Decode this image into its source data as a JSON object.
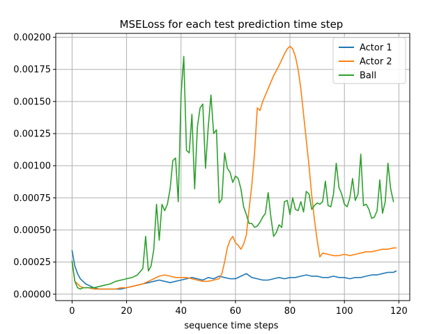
{
  "chart_data": {
    "type": "line",
    "title": "MSELoss for each test prediction time step",
    "xlabel": "sequence time steps",
    "ylabel": "",
    "xlim": [
      -6,
      124
    ],
    "ylim": [
      -5e-05,
      0.00203
    ],
    "xticks": [
      0,
      20,
      40,
      60,
      80,
      100,
      120
    ],
    "yticks": [
      0.0,
      0.00025,
      0.0005,
      0.00075,
      0.001,
      0.00125,
      0.0015,
      0.00175,
      0.002
    ],
    "ytick_labels": [
      "0.00000",
      "0.00025",
      "0.00050",
      "0.00075",
      "0.00100",
      "0.00125",
      "0.00150",
      "0.00175",
      "0.00200"
    ],
    "grid": true,
    "legend_position": "top-right",
    "series": [
      {
        "name": "Actor 1",
        "color": "#1f77b4",
        "points": [
          [
            0,
            0.00034
          ],
          [
            1,
            0.00022
          ],
          [
            2,
            0.00016
          ],
          [
            3,
            0.00012
          ],
          [
            4,
            0.0001
          ],
          [
            5,
            8e-05
          ],
          [
            6,
            7e-05
          ],
          [
            7,
            6e-05
          ],
          [
            8,
            5e-05
          ],
          [
            9,
            4.5e-05
          ],
          [
            10,
            4e-05
          ],
          [
            12,
            4e-05
          ],
          [
            14,
            4e-05
          ],
          [
            16,
            4e-05
          ],
          [
            18,
            4e-05
          ],
          [
            20,
            5e-05
          ],
          [
            22,
            6e-05
          ],
          [
            24,
            7e-05
          ],
          [
            26,
            8e-05
          ],
          [
            28,
            9e-05
          ],
          [
            30,
            0.0001
          ],
          [
            32,
            0.00011
          ],
          [
            34,
            0.0001
          ],
          [
            36,
            9e-05
          ],
          [
            38,
            0.0001
          ],
          [
            40,
            0.00011
          ],
          [
            42,
            0.00012
          ],
          [
            44,
            0.00013
          ],
          [
            46,
            0.00012
          ],
          [
            48,
            0.00011
          ],
          [
            50,
            0.00013
          ],
          [
            52,
            0.00012
          ],
          [
            54,
            0.00014
          ],
          [
            56,
            0.00013
          ],
          [
            58,
            0.00012
          ],
          [
            60,
            0.00012
          ],
          [
            62,
            0.00014
          ],
          [
            64,
            0.00016
          ],
          [
            66,
            0.00013
          ],
          [
            68,
            0.00012
          ],
          [
            70,
            0.00011
          ],
          [
            72,
            0.00011
          ],
          [
            74,
            0.00012
          ],
          [
            76,
            0.00013
          ],
          [
            78,
            0.00012
          ],
          [
            80,
            0.00013
          ],
          [
            82,
            0.00013
          ],
          [
            84,
            0.00014
          ],
          [
            86,
            0.00015
          ],
          [
            88,
            0.00014
          ],
          [
            90,
            0.00014
          ],
          [
            92,
            0.00013
          ],
          [
            94,
            0.00013
          ],
          [
            96,
            0.00014
          ],
          [
            98,
            0.00013
          ],
          [
            100,
            0.00013
          ],
          [
            102,
            0.00012
          ],
          [
            104,
            0.00013
          ],
          [
            106,
            0.00013
          ],
          [
            108,
            0.00014
          ],
          [
            110,
            0.00015
          ],
          [
            112,
            0.00015
          ],
          [
            114,
            0.00016
          ],
          [
            116,
            0.00017
          ],
          [
            118,
            0.00017
          ],
          [
            119,
            0.00018
          ]
        ]
      },
      {
        "name": "Actor 2",
        "color": "#ff7f0e",
        "points": [
          [
            0,
            0.00025
          ],
          [
            1,
            0.0001
          ],
          [
            2,
            8e-05
          ],
          [
            3,
            6e-05
          ],
          [
            4,
            5e-05
          ],
          [
            6,
            5e-05
          ],
          [
            8,
            4e-05
          ],
          [
            10,
            4e-05
          ],
          [
            12,
            4e-05
          ],
          [
            14,
            4e-05
          ],
          [
            16,
            4e-05
          ],
          [
            18,
            5e-05
          ],
          [
            20,
            5e-05
          ],
          [
            22,
            6e-05
          ],
          [
            24,
            7e-05
          ],
          [
            26,
            8e-05
          ],
          [
            28,
            0.0001
          ],
          [
            30,
            0.00012
          ],
          [
            32,
            0.00014
          ],
          [
            34,
            0.00015
          ],
          [
            36,
            0.00014
          ],
          [
            38,
            0.00013
          ],
          [
            40,
            0.00013
          ],
          [
            42,
            0.00013
          ],
          [
            44,
            0.00012
          ],
          [
            46,
            0.00011
          ],
          [
            48,
            0.0001
          ],
          [
            50,
            0.0001
          ],
          [
            52,
            0.00011
          ],
          [
            54,
            0.00012
          ],
          [
            55,
            0.00016
          ],
          [
            56,
            0.00025
          ],
          [
            57,
            0.00036
          ],
          [
            58,
            0.00042
          ],
          [
            59,
            0.00045
          ],
          [
            60,
            0.0004
          ],
          [
            61,
            0.00038
          ],
          [
            62,
            0.00035
          ],
          [
            63,
            0.00039
          ],
          [
            64,
            0.00046
          ],
          [
            65,
            0.00066
          ],
          [
            66,
            0.00085
          ],
          [
            67,
            0.0011
          ],
          [
            68,
            0.00145
          ],
          [
            69,
            0.00143
          ],
          [
            70,
            0.0015
          ],
          [
            72,
            0.0016
          ],
          [
            74,
            0.0017
          ],
          [
            76,
            0.00178
          ],
          [
            78,
            0.00187
          ],
          [
            79,
            0.00191
          ],
          [
            80,
            0.00193
          ],
          [
            81,
            0.00191
          ],
          [
            82,
            0.00185
          ],
          [
            83,
            0.00175
          ],
          [
            84,
            0.0016
          ],
          [
            85,
            0.0014
          ],
          [
            86,
            0.0012
          ],
          [
            87,
            0.001
          ],
          [
            88,
            0.00077
          ],
          [
            89,
            0.00058
          ],
          [
            90,
            0.00042
          ],
          [
            91,
            0.00029
          ],
          [
            92,
            0.00032
          ],
          [
            94,
            0.00031
          ],
          [
            96,
            0.0003
          ],
          [
            98,
            0.0003
          ],
          [
            100,
            0.00031
          ],
          [
            102,
            0.0003
          ],
          [
            104,
            0.00031
          ],
          [
            106,
            0.00032
          ],
          [
            108,
            0.00033
          ],
          [
            110,
            0.00033
          ],
          [
            112,
            0.00034
          ],
          [
            114,
            0.00035
          ],
          [
            116,
            0.00035
          ],
          [
            118,
            0.00036
          ],
          [
            119,
            0.00036
          ]
        ]
      },
      {
        "name": "Ball",
        "color": "#2ca02c",
        "points": [
          [
            0,
            0.00026
          ],
          [
            1,
            0.0001
          ],
          [
            2,
            5e-05
          ],
          [
            3,
            4e-05
          ],
          [
            4,
            5e-05
          ],
          [
            6,
            5e-05
          ],
          [
            8,
            5e-05
          ],
          [
            10,
            6e-05
          ],
          [
            12,
            7e-05
          ],
          [
            14,
            8e-05
          ],
          [
            16,
            0.0001
          ],
          [
            18,
            0.00011
          ],
          [
            20,
            0.00012
          ],
          [
            22,
            0.00013
          ],
          [
            24,
            0.00015
          ],
          [
            26,
            0.0002
          ],
          [
            27,
            0.00045
          ],
          [
            28,
            0.00018
          ],
          [
            29,
            0.00022
          ],
          [
            30,
            0.00035
          ],
          [
            31,
            0.0007
          ],
          [
            32,
            0.00042
          ],
          [
            33,
            0.0007
          ],
          [
            34,
            0.00065
          ],
          [
            35,
            0.0007
          ],
          [
            36,
            0.00082
          ],
          [
            37,
            0.00104
          ],
          [
            38,
            0.00106
          ],
          [
            39,
            0.00072
          ],
          [
            40,
            0.00155
          ],
          [
            41,
            0.00185
          ],
          [
            42,
            0.00112
          ],
          [
            43,
            0.0011
          ],
          [
            44,
            0.0014
          ],
          [
            45,
            0.00082
          ],
          [
            46,
            0.0013
          ],
          [
            47,
            0.00145
          ],
          [
            48,
            0.00148
          ],
          [
            49,
            0.00098
          ],
          [
            50,
            0.0013
          ],
          [
            51,
            0.00155
          ],
          [
            52,
            0.00125
          ],
          [
            53,
            0.00128
          ],
          [
            54,
            0.00071
          ],
          [
            55,
            0.00074
          ],
          [
            56,
            0.0011
          ],
          [
            57,
            0.00098
          ],
          [
            58,
            0.00095
          ],
          [
            59,
            0.00087
          ],
          [
            60,
            0.00092
          ],
          [
            61,
            0.0009
          ],
          [
            62,
            0.00082
          ],
          [
            63,
            0.00068
          ],
          [
            64,
            0.00062
          ],
          [
            65,
            0.00055
          ],
          [
            66,
            0.00055
          ],
          [
            67,
            0.00052
          ],
          [
            68,
            0.00053
          ],
          [
            69,
            0.00056
          ],
          [
            70,
            0.0006
          ],
          [
            71,
            0.00063
          ],
          [
            72,
            0.00079
          ],
          [
            73,
            0.0006
          ],
          [
            74,
            0.00045
          ],
          [
            75,
            0.00048
          ],
          [
            76,
            0.00054
          ],
          [
            77,
            0.00052
          ],
          [
            78,
            0.00072
          ],
          [
            79,
            0.00073
          ],
          [
            80,
            0.00062
          ],
          [
            81,
            0.00075
          ],
          [
            82,
            0.00066
          ],
          [
            83,
            0.00065
          ],
          [
            84,
            0.00072
          ],
          [
            85,
            0.00064
          ],
          [
            86,
            0.0008
          ],
          [
            87,
            0.00078
          ],
          [
            88,
            0.00066
          ],
          [
            89,
            0.00069
          ],
          [
            90,
            0.00071
          ],
          [
            91,
            0.0007
          ],
          [
            92,
            0.00072
          ],
          [
            93,
            0.00088
          ],
          [
            94,
            0.00069
          ],
          [
            95,
            0.00068
          ],
          [
            96,
            0.00078
          ],
          [
            97,
            0.00102
          ],
          [
            98,
            0.00083
          ],
          [
            99,
            0.00078
          ],
          [
            100,
            0.0007
          ],
          [
            101,
            0.00068
          ],
          [
            102,
            0.00075
          ],
          [
            103,
            0.0009
          ],
          [
            104,
            0.00073
          ],
          [
            105,
            0.00078
          ],
          [
            106,
            0.00109
          ],
          [
            107,
            0.00069
          ],
          [
            108,
            0.0007
          ],
          [
            109,
            0.00066
          ],
          [
            110,
            0.00059
          ],
          [
            111,
            0.0006
          ],
          [
            112,
            0.00065
          ],
          [
            113,
            0.00089
          ],
          [
            114,
            0.00063
          ],
          [
            115,
            0.00072
          ],
          [
            116,
            0.00102
          ],
          [
            117,
            0.00082
          ],
          [
            118,
            0.00072
          ]
        ]
      }
    ]
  }
}
